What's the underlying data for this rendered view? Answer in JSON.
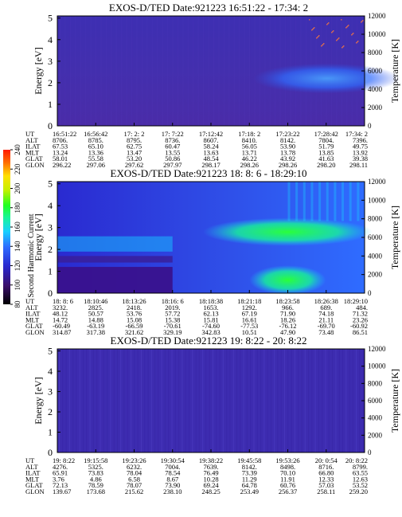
{
  "colorbar": {
    "label": "Second Harmonic Current",
    "ticks": [
      "80",
      "100",
      "120",
      "140",
      "160",
      "180",
      "200",
      "220",
      "240"
    ],
    "colors": [
      "#000000",
      "#3a0f6b",
      "#2a2ad0",
      "#2f6cff",
      "#19d0ff",
      "#17f59a",
      "#20ff20",
      "#c6f000",
      "#ffe000",
      "#ff6a00",
      "#ff1a00"
    ]
  },
  "panels": [
    {
      "title": "EXOS-D/TED   Date:921223  16:51:22 - 17:34: 2",
      "ylabel": "Energy [eV]",
      "y2label": "Temperature [K]",
      "yticks": [
        "0",
        "1",
        "2",
        "3",
        "4",
        "5"
      ],
      "y2ticks": [
        "0",
        "2000",
        "4000",
        "6000",
        "8000",
        "10000",
        "12000"
      ],
      "rows": [
        {
          "label": "UT",
          "values": [
            "16:51:22",
            "16:56:42",
            "17: 2: 2",
            "17: 7:22",
            "17:12:42",
            "17:18: 2",
            "17:23:22",
            "17:28:42",
            "17:34: 2"
          ]
        },
        {
          "label": "ALT",
          "values": [
            "8706.",
            "8785.",
            "8795.",
            "8736.",
            "8607.",
            "8410.",
            "8142.",
            "7804.",
            "7396."
          ]
        },
        {
          "label": "ILAT",
          "values": [
            "67.53",
            "65.10",
            "62.75",
            "60.47",
            "58.24",
            "56.05",
            "53.90",
            "51.79",
            "49.75"
          ]
        },
        {
          "label": "MLT",
          "values": [
            "13.24",
            "13.36",
            "13.47",
            "13.55",
            "13.63",
            "13.71",
            "13.78",
            "13.85",
            "13.92"
          ]
        },
        {
          "label": "GLAT",
          "values": [
            "58.01",
            "55.58",
            "53.20",
            "50.86",
            "48.54",
            "46.22",
            "43.92",
            "41.63",
            "39.38"
          ]
        },
        {
          "label": "GLON",
          "values": [
            "296.22",
            "297.06",
            "297.62",
            "297.97",
            "298.17",
            "298.26",
            "298.26",
            "298.20",
            "298.11"
          ]
        }
      ]
    },
    {
      "title": "EXOS-D/TED   Date:921223  18: 8: 6 - 18:29:10",
      "ylabel": "Energy [eV]",
      "y2label": "Temperature [K]",
      "yticks": [
        "0",
        "1",
        "2",
        "3",
        "4",
        "5"
      ],
      "y2ticks": [
        "0",
        "2000",
        "4000",
        "6000",
        "8000",
        "10000",
        "12000"
      ],
      "rows": [
        {
          "label": "UT",
          "values": [
            "18: 8: 6",
            "18:10:46",
            "18:13:26",
            "18:16: 6",
            "18:18:38",
            "18:21:18",
            "18:23:58",
            "18:26:38",
            "18:29:10"
          ]
        },
        {
          "label": "ALT",
          "values": [
            "3232.",
            "2825.",
            "2418.",
            "2019.",
            "1653.",
            "1292.",
            "966.",
            "689.",
            "484."
          ]
        },
        {
          "label": "ILAT",
          "values": [
            "48.12",
            "50.57",
            "53.76",
            "57.72",
            "62.13",
            "67.19",
            "71.90",
            "74.18",
            "71.32"
          ]
        },
        {
          "label": "MLT",
          "values": [
            "14.72",
            "14.88",
            "15.08",
            "15.38",
            "15.81",
            "16.61",
            "18.26",
            "21.11",
            "23.26"
          ]
        },
        {
          "label": "GLAT",
          "values": [
            "-60.49",
            "-63.19",
            "-66.59",
            "-70.61",
            "-74.60",
            "-77.53",
            "-76.12",
            "-69.70",
            "-60.92"
          ]
        },
        {
          "label": "GLON",
          "values": [
            "314.87",
            "317.38",
            "321.62",
            "329.19",
            "342.83",
            "10.51",
            "47.90",
            "73.48",
            "86.51"
          ]
        }
      ]
    },
    {
      "title": "EXOS-D/TED   Date:921223  19: 8:22 - 20: 8:22",
      "ylabel": "Energy [eV]",
      "y2label": "Temperature [K]",
      "yticks": [
        "0",
        "1",
        "2",
        "3",
        "4",
        "5"
      ],
      "y2ticks": [
        "0",
        "2000",
        "4000",
        "6000",
        "8000",
        "10000",
        "12000"
      ],
      "rows": [
        {
          "label": "UT",
          "values": [
            "19: 8:22",
            "19:15:58",
            "19:23:26",
            "19:30:54",
            "19:38:22",
            "19:45:58",
            "19:53:26",
            "20: 0:54",
            "20: 8:22"
          ]
        },
        {
          "label": "ALT",
          "values": [
            "4276.",
            "5325.",
            "6232.",
            "7004.",
            "7639.",
            "8142.",
            "8498.",
            "8716.",
            "8799."
          ]
        },
        {
          "label": "ILAT",
          "values": [
            "65.91",
            "73.83",
            "78.04",
            "78.54",
            "76.49",
            "73.39",
            "70.10",
            "66.80",
            "63.55"
          ]
        },
        {
          "label": "MLT",
          "values": [
            "3.76",
            "4.86",
            "6.58",
            "8.67",
            "10.28",
            "11.29",
            "11.91",
            "12.33",
            "12.63"
          ]
        },
        {
          "label": "GLAT",
          "values": [
            "72.13",
            "78.59",
            "78.07",
            "73.90",
            "69.24",
            "64.78",
            "60.76",
            "57.03",
            "53.52"
          ]
        },
        {
          "label": "GLON",
          "values": [
            "139.67",
            "173.68",
            "215.62",
            "238.10",
            "248.25",
            "253.49",
            "256.37",
            "258.11",
            "259.20"
          ]
        }
      ]
    }
  ],
  "chart_data": [
    {
      "type": "heatmap",
      "title": "EXOS-D/TED   Date:921223  16:51:22 - 17:34: 2",
      "xlabel": "UT",
      "ylabel": "Energy [eV]",
      "y2label": "Temperature [K]",
      "ylim": [
        0,
        5.1
      ],
      "y2lim": [
        0,
        12000
      ],
      "x": [
        "16:51:22",
        "16:56:42",
        "17: 2: 2",
        "17: 7:22",
        "17:12:42",
        "17:18: 2",
        "17:23:22",
        "17:28:42",
        "17:34: 2"
      ],
      "colorbar_label": "Second Harmonic Current",
      "colorbar_range": [
        80,
        240
      ],
      "features": [
        {
          "x_from": "17:18: 2",
          "x_to": "17:34: 2",
          "energy_from": 1.5,
          "energy_to": 2.9,
          "level": 135
        },
        {
          "x_from": "16:51:22",
          "x_to": "17:34: 2",
          "energy_from": 0.0,
          "energy_to": 5.1,
          "level": 112
        }
      ]
    },
    {
      "type": "heatmap",
      "title": "EXOS-D/TED   Date:921223  18: 8: 6 - 18:29:10",
      "xlabel": "UT",
      "ylabel": "Energy [eV]",
      "y2label": "Temperature [K]",
      "ylim": [
        0,
        5.1
      ],
      "y2lim": [
        0,
        12000
      ],
      "x": [
        "18: 8: 6",
        "18:10:46",
        "18:13:26",
        "18:16: 6",
        "18:18:38",
        "18:21:18",
        "18:23:58",
        "18:26:38",
        "18:29:10"
      ],
      "colorbar_label": "Second Harmonic Current",
      "colorbar_range": [
        80,
        240
      ],
      "features": [
        {
          "x_from": "18: 8: 6",
          "x_to": "18:16: 6",
          "energy_from": 1.4,
          "energy_to": 1.7,
          "level": 100
        },
        {
          "x_from": "18: 8: 6",
          "x_to": "18:16: 6",
          "energy_from": 1.9,
          "energy_to": 2.6,
          "level": 150
        },
        {
          "x_from": "18:18:38",
          "x_to": "18:29:10",
          "energy_from": 2.3,
          "energy_to": 3.3,
          "level": 165
        },
        {
          "x_from": "18:21:18",
          "x_to": "18:26:38",
          "energy_from": 0.0,
          "energy_to": 1.2,
          "level": 185
        },
        {
          "x_from": "18:23:58",
          "x_to": "18:29:10",
          "energy_from": 3.3,
          "energy_to": 5.1,
          "level": 150
        }
      ]
    },
    {
      "type": "heatmap",
      "title": "EXOS-D/TED   Date:921223  19: 8:22 - 20: 8:22",
      "xlabel": "UT",
      "ylabel": "Energy [eV]",
      "y2label": "Temperature [K]",
      "ylim": [
        0,
        5.1
      ],
      "y2lim": [
        0,
        12000
      ],
      "x": [
        "19: 8:22",
        "19:15:58",
        "19:23:26",
        "19:30:54",
        "19:38:22",
        "19:45:58",
        "19:53:26",
        "20: 0:54",
        "20: 8:22"
      ],
      "colorbar_label": "Second Harmonic Current",
      "colorbar_range": [
        80,
        240
      ],
      "features": [
        {
          "x_from": "19: 8:22",
          "x_to": "20: 8:22",
          "energy_from": 0.0,
          "energy_to": 5.1,
          "level": 112
        }
      ]
    }
  ]
}
